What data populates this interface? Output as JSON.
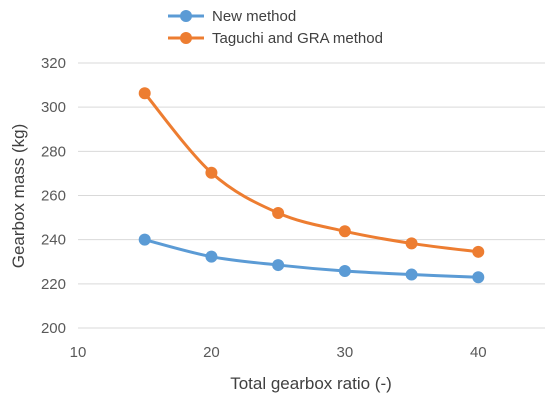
{
  "chart_data": {
    "type": "line",
    "xlabel": "Total gearbox ratio (-)",
    "ylabel": "Gearbox mass (kg)",
    "xlim": [
      10,
      45
    ],
    "ylim": [
      200,
      320
    ],
    "xticks": [
      10,
      20,
      30,
      40
    ],
    "yticks": [
      200,
      220,
      240,
      260,
      280,
      300,
      320
    ],
    "grid": "horizontal",
    "legend_position": "top",
    "smooth": true,
    "series": [
      {
        "name": "New method",
        "color": "#5b9bd5",
        "x": [
          15,
          20,
          25,
          30,
          35,
          40
        ],
        "y": [
          240,
          232.3,
          228.5,
          225.8,
          224.2,
          223
        ]
      },
      {
        "name": "Taguchi and GRA method",
        "color": "#ed7d31",
        "x": [
          15,
          20,
          25,
          30,
          35,
          40
        ],
        "y": [
          306.3,
          270.3,
          252.1,
          243.8,
          238.3,
          234.5
        ]
      }
    ]
  }
}
